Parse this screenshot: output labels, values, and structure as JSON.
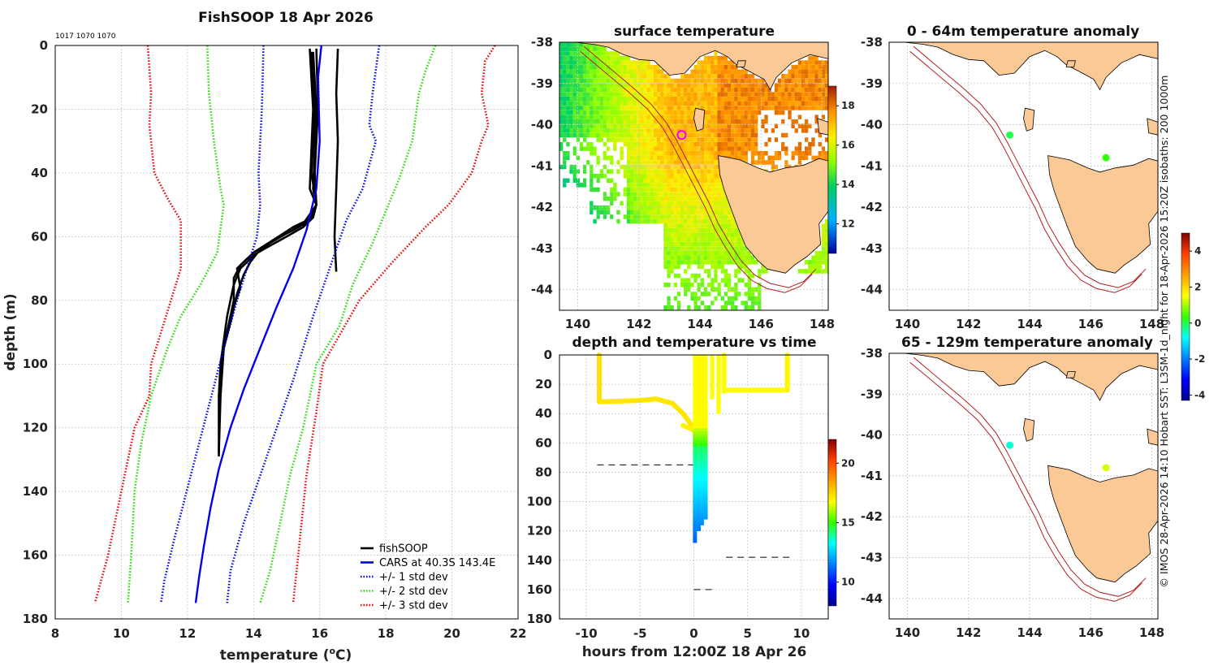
{
  "chart_data": [
    {
      "type": "line",
      "title": "FishSOOP 18 Apr 2026",
      "subtitle": "1017 1070 1070",
      "xlabel": "temperature (oC)",
      "ylabel": "depth (m)",
      "xlim": [
        8,
        22
      ],
      "ylim": [
        180,
        0
      ],
      "xticks": [
        "8",
        "10",
        "12",
        "14",
        "16",
        "18",
        "20",
        "22"
      ],
      "yticks": [
        "0",
        "20",
        "40",
        "60",
        "80",
        "100",
        "120",
        "140",
        "160",
        "180"
      ],
      "legend": [
        "fishSOOP",
        "CARS at 40.3S 143.4E",
        "+/- 1 std dev",
        "+/- 2 std dev",
        "+/- 3 std dev"
      ],
      "series": [
        {
          "name": "fishSOOP",
          "color": "#000000",
          "style": "solid",
          "profiles": [
            {
              "x": [
                15.7,
                15.8,
                15.7,
                15.9,
                15.8,
                15.6,
                15.2,
                14.6,
                14.0,
                13.6,
                13.4,
                13.4,
                13.2,
                13.0,
                12.95,
                12.95,
                12.95
              ],
              "y": [
                1,
                20,
                45,
                50,
                53,
                55,
                57,
                61,
                65,
                69,
                73,
                80,
                90,
                100,
                110,
                120,
                129
              ]
            },
            {
              "x": [
                15.8,
                15.9,
                15.8,
                15.9,
                15.8,
                15.5,
                15.0,
                14.3,
                13.8,
                13.5,
                13.6,
                13.3,
                13.1,
                13.0,
                12.95
              ],
              "y": [
                2,
                20,
                45,
                50,
                54,
                57,
                60,
                64,
                67,
                70,
                76,
                85,
                95,
                110,
                128
              ]
            },
            {
              "x": [
                15.75,
                15.85,
                15.75,
                15.9,
                15.7,
                15.2,
                14.6,
                14.2,
                13.9,
                13.7,
                13.5,
                13.3,
                13.1,
                13.0
              ],
              "y": [
                2,
                22,
                40,
                50,
                55,
                58,
                61,
                64,
                68,
                72,
                78,
                87,
                95,
                105
              ]
            },
            {
              "x": [
                15.9,
                15.95,
                15.85,
                15.9,
                15.5,
                15.0,
                14.5,
                14.0,
                13.6,
                13.4,
                13.2,
                13.0
              ],
              "y": [
                1,
                20,
                40,
                50,
                56,
                59,
                62,
                66,
                70,
                75,
                85,
                100
              ]
            },
            {
              "x": [
                16.55,
                16.5,
                16.55,
                16.5,
                16.45,
                16.5
              ],
              "y": [
                1,
                15,
                30,
                45,
                60,
                71
              ]
            }
          ]
        },
        {
          "name": "CARS at 40.3S 143.4E",
          "color": "#0000ee",
          "style": "solid",
          "x": [
            16.05,
            15.95,
            16.0,
            15.9,
            15.6,
            15.2,
            14.7,
            14.2,
            13.7,
            13.3,
            12.95,
            12.7,
            12.5,
            12.35,
            12.25
          ],
          "y": [
            0,
            10,
            30,
            45,
            58,
            70,
            82,
            95,
            108,
            120,
            133,
            145,
            157,
            167,
            175
          ]
        },
        {
          "name": "+/- 1 std dev low",
          "color": "#0000ee",
          "style": "dotted",
          "x": [
            14.3,
            14.25,
            14.15,
            14.2,
            14.1,
            13.8,
            13.5,
            13.1,
            12.6,
            12.1,
            11.6,
            11.3,
            11.2
          ],
          "y": [
            0,
            20,
            40,
            50,
            60,
            70,
            80,
            95,
            115,
            135,
            155,
            168,
            175
          ]
        },
        {
          "name": "+/- 1 std dev high",
          "color": "#0000ee",
          "style": "dotted",
          "x": [
            17.8,
            17.6,
            17.5,
            17.7,
            17.3,
            16.8,
            16.3,
            15.8,
            15.2,
            14.7,
            14.2,
            13.7,
            13.3,
            13.2
          ],
          "y": [
            0,
            15,
            25,
            30,
            45,
            55,
            70,
            85,
            105,
            120,
            135,
            150,
            165,
            175
          ]
        },
        {
          "name": "+/- 2 std dev low",
          "color": "#22dd00",
          "style": "dotted",
          "x": [
            12.6,
            12.65,
            12.8,
            13.0,
            13.1,
            12.9,
            12.4,
            11.8,
            11.4,
            10.9,
            10.6,
            10.4,
            10.3,
            10.2
          ],
          "y": [
            0,
            15,
            30,
            45,
            50,
            65,
            75,
            85,
            95,
            110,
            125,
            140,
            160,
            175
          ]
        },
        {
          "name": "+/- 2 std dev high",
          "color": "#22dd00",
          "style": "dotted",
          "x": [
            19.5,
            19.2,
            19.0,
            18.8,
            18.4,
            17.6,
            17.0,
            16.6,
            15.9,
            15.5,
            15.1,
            14.8,
            14.5,
            14.2
          ],
          "y": [
            0,
            8,
            15,
            30,
            42,
            62,
            75,
            88,
            100,
            120,
            135,
            150,
            165,
            175
          ]
        },
        {
          "name": "+/- 3 std dev low",
          "color": "#ee0000",
          "style": "dotted",
          "x": [
            10.8,
            10.9,
            10.85,
            11.0,
            11.4,
            11.8,
            11.8,
            11.5,
            10.9,
            10.85,
            10.4,
            10.0,
            9.6,
            9.2
          ],
          "y": [
            0,
            15,
            25,
            40,
            48,
            55,
            70,
            80,
            100,
            110,
            120,
            140,
            160,
            175
          ]
        },
        {
          "name": "+/- 3 std dev high",
          "color": "#ee0000",
          "style": "dotted",
          "x": [
            21.3,
            21.0,
            20.9,
            21.1,
            20.9,
            20.6,
            19.9,
            19.2,
            18.2,
            17.2,
            16.1,
            15.9,
            15.6,
            15.4,
            15.2
          ],
          "y": [
            0,
            5,
            15,
            25,
            30,
            40,
            50,
            57,
            68,
            80,
            100,
            115,
            135,
            155,
            175
          ]
        }
      ]
    },
    {
      "type": "heatmap",
      "title": "surface temperature",
      "xlim": [
        139.4,
        148.2
      ],
      "ylim": [
        -44.5,
        -38
      ],
      "xticks": [
        "140",
        "142",
        "144",
        "146",
        "148"
      ],
      "yticks": [
        "-38",
        "-39",
        "-40",
        "-41",
        "-42",
        "-43",
        "-44"
      ],
      "colorbar": {
        "min": 10.5,
        "max": 19,
        "ticks": [
          "12",
          "14",
          "16",
          "18"
        ]
      },
      "marker": {
        "lon": 143.4,
        "lat": -40.25
      }
    },
    {
      "type": "scatter",
      "title": "depth and temperature vs time",
      "xlabel": "hours from 12:00Z 18 Apr 26",
      "xlim": [
        -12.5,
        12.5
      ],
      "ylim": [
        180,
        0
      ],
      "xticks": [
        "-10",
        "-5",
        "0",
        "5",
        "10"
      ],
      "yticks": [
        "0",
        "20",
        "40",
        "60",
        "80",
        "100",
        "120",
        "140",
        "160",
        "180"
      ],
      "colorbar": {
        "min": 8,
        "max": 22,
        "ticks": [
          "10",
          "15",
          "20"
        ]
      },
      "reference_lines": [
        {
          "x": [
            -9,
            0
          ],
          "y": 75
        },
        {
          "x": [
            3,
            9
          ],
          "y": 138
        },
        {
          "x": [
            0,
            2
          ],
          "y": 160
        }
      ]
    },
    {
      "type": "scatter",
      "title": "0 - 64m temperature anomaly",
      "xlim": [
        139.4,
        148.2
      ],
      "ylim": [
        -44.5,
        -38
      ],
      "xticks": [
        "140",
        "142",
        "144",
        "146",
        "148"
      ],
      "yticks": [
        "-38",
        "-39",
        "-40",
        "-41",
        "-42",
        "-43",
        "-44"
      ],
      "points": [
        {
          "lon": 143.35,
          "lat": -40.25,
          "anomaly": 0.0
        },
        {
          "lon": 146.5,
          "lat": -40.8,
          "anomaly": 0.3
        }
      ]
    },
    {
      "type": "scatter",
      "title": "65 - 129m temperature anomaly",
      "xlim": [
        139.4,
        148.2
      ],
      "ylim": [
        -44.5,
        -38
      ],
      "xticks": [
        "140",
        "142",
        "144",
        "146",
        "148"
      ],
      "yticks": [
        "-38",
        "-39",
        "-40",
        "-41",
        "-42",
        "-43",
        "-44"
      ],
      "points": [
        {
          "lon": 143.35,
          "lat": -40.25,
          "anomaly": -0.6
        },
        {
          "lon": 146.5,
          "lat": -40.8,
          "anomaly": 1.3
        }
      ]
    }
  ],
  "anomaly_colorbar": {
    "min": -4.3,
    "max": 5.0,
    "ticks": [
      "4",
      "2",
      "0",
      "-2",
      "-4"
    ]
  },
  "credit": "© IMOS 28-Apr-2026 14:10 Hobart SST: L3SM-1d_night for 18-Apr-2026 15:20Z isobaths: 200  1000m"
}
